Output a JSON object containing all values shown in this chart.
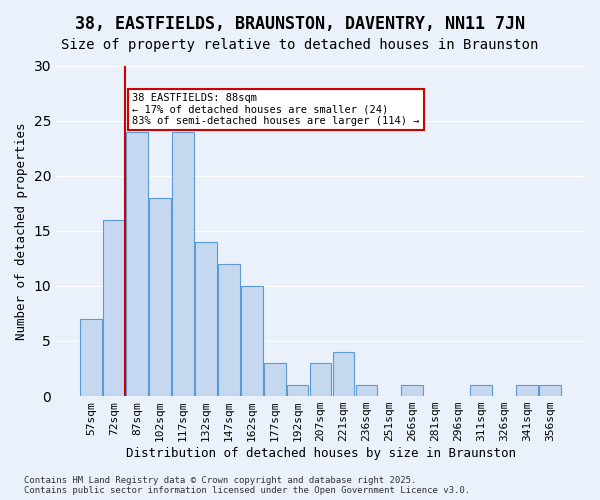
{
  "title": "38, EASTFIELDS, BRAUNSTON, DAVENTRY, NN11 7JN",
  "subtitle": "Size of property relative to detached houses in Braunston",
  "xlabel": "Distribution of detached houses by size in Braunston",
  "ylabel": "Number of detached properties",
  "categories": [
    "57sqm",
    "72sqm",
    "87sqm",
    "102sqm",
    "117sqm",
    "132sqm",
    "147sqm",
    "162sqm",
    "177sqm",
    "192sqm",
    "207sqm",
    "221sqm",
    "236sqm",
    "251sqm",
    "266sqm",
    "281sqm",
    "296sqm",
    "311sqm",
    "326sqm",
    "341sqm",
    "356sqm"
  ],
  "values": [
    7,
    16,
    24,
    18,
    24,
    14,
    12,
    10,
    3,
    1,
    3,
    4,
    1,
    0,
    1,
    0,
    0,
    1,
    0,
    1,
    1
  ],
  "bar_color": "#c5d8f0",
  "bar_edge_color": "#5b9bd5",
  "background_color": "#eaf1fb",
  "grid_color": "#ffffff",
  "annotation_text": "38 EASTFIELDS: 88sqm\n← 17% of detached houses are smaller (24)\n83% of semi-detached houses are larger (114) →",
  "redline_index": 2,
  "annotation_box_color": "#ffffff",
  "annotation_box_edge": "#cc0000",
  "redline_color": "#cc0000",
  "title_fontsize": 12,
  "subtitle_fontsize": 10,
  "tick_fontsize": 8,
  "ylabel_fontsize": 9,
  "xlabel_fontsize": 9,
  "footer_text": "Contains HM Land Registry data © Crown copyright and database right 2025.\nContains public sector information licensed under the Open Government Licence v3.0.",
  "ylim": [
    0,
    30
  ]
}
